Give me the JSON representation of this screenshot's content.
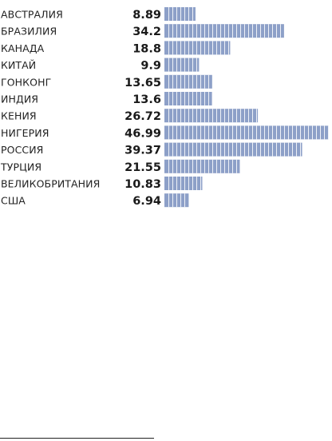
{
  "chart_data": {
    "type": "bar",
    "orientation": "horizontal",
    "categories": [
      "АВСТРАЛИЯ",
      "БРАЗИЛИЯ",
      "КАНАДА",
      "КИТАЙ",
      "ГОНКОНГ",
      "ИНДИЯ",
      "КЕНИЯ",
      "НИГЕРИЯ",
      "РОССИЯ",
      "ТУРЦИЯ",
      "ВЕЛИКОБРИТАНИЯ",
      "США"
    ],
    "values": [
      8.89,
      34.2,
      18.8,
      9.9,
      13.65,
      13.6,
      26.72,
      46.99,
      39.37,
      21.55,
      10.83,
      6.94
    ],
    "value_labels": [
      "8.89",
      "34.2",
      "18.8",
      "9.9",
      "13.65",
      "13.6",
      "26.72",
      "46.99",
      "39.37",
      "21.55",
      "10.83",
      "6.94"
    ],
    "bar_style": "segmented",
    "bar_color": "#8da0c8",
    "grid": false,
    "legend": "none",
    "xlim": [
      0,
      47
    ]
  }
}
